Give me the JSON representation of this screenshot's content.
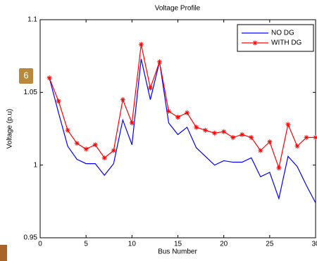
{
  "chart_data": {
    "type": "line",
    "title": "Voltage Profile",
    "xlabel": "Bus Number",
    "ylabel": "Voltage (p.u)",
    "annotation": "6",
    "x": [
      1,
      2,
      3,
      4,
      5,
      6,
      7,
      8,
      9,
      10,
      11,
      12,
      13,
      14,
      15,
      16,
      17,
      18,
      19,
      20,
      21,
      22,
      23,
      24,
      25,
      26,
      27,
      28,
      29,
      30
    ],
    "series": [
      {
        "name": "NO DG",
        "color": "#0000ff",
        "marker": "none",
        "values": [
          1.06,
          1.036,
          1.013,
          1.004,
          1.001,
          1.001,
          0.993,
          1.001,
          1.031,
          1.014,
          1.073,
          1.045,
          1.071,
          1.029,
          1.021,
          1.026,
          1.012,
          1.006,
          1.0,
          1.003,
          1.002,
          1.002,
          1.005,
          0.992,
          0.995,
          0.977,
          1.006,
          0.999,
          0.986,
          0.974
        ]
      },
      {
        "name": "WITH DG",
        "color": "#ff0000",
        "marker": "star",
        "values": [
          1.06,
          1.044,
          1.024,
          1.015,
          1.011,
          1.014,
          1.005,
          1.01,
          1.045,
          1.029,
          1.083,
          1.053,
          1.071,
          1.037,
          1.033,
          1.036,
          1.026,
          1.024,
          1.022,
          1.023,
          1.019,
          1.021,
          1.019,
          1.01,
          1.016,
          0.998,
          1.028,
          1.013,
          1.019,
          1.019
        ]
      }
    ],
    "xlim": [
      0,
      30
    ],
    "xticks": [
      0,
      5,
      10,
      15,
      20,
      25,
      30
    ],
    "ylim": [
      0.95,
      1.1
    ],
    "yticks": [
      0.95,
      1,
      1.05,
      1.1
    ],
    "grid": false,
    "legend": "upper right"
  }
}
